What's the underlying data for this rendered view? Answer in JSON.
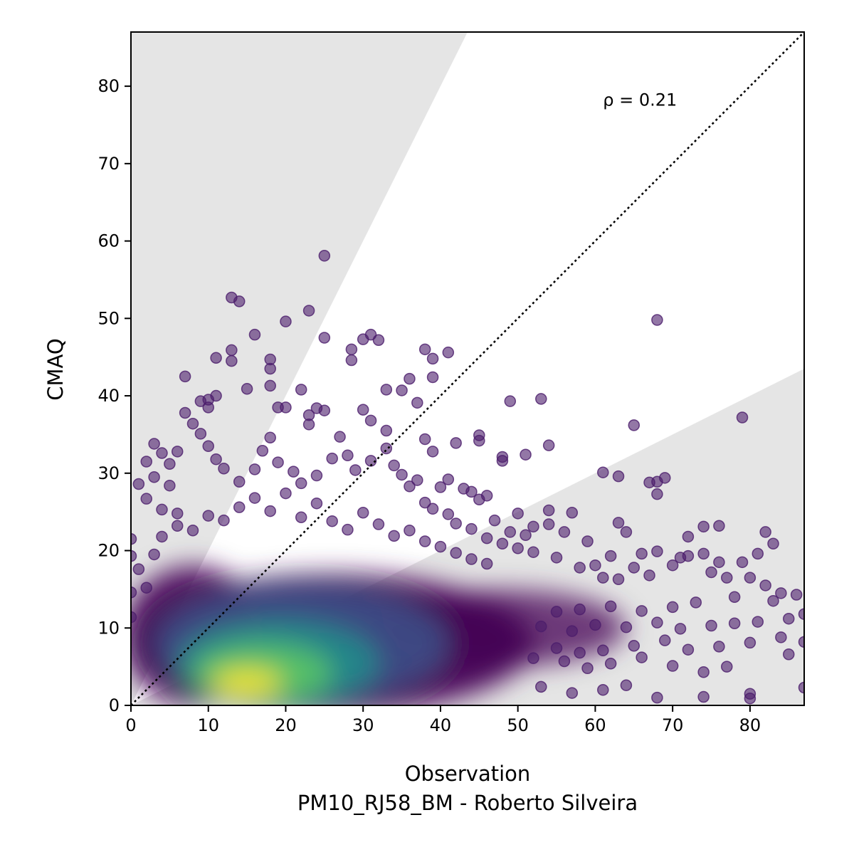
{
  "chart_data": {
    "type": "scatter",
    "title": "",
    "xlabel": "Observation",
    "xlabel_sub": "PM10_RJ58_BM - Roberto Silveira",
    "ylabel": "CMAQ",
    "xlim": [
      0,
      87
    ],
    "ylim": [
      0,
      87
    ],
    "x_ticks": [
      0,
      10,
      20,
      30,
      40,
      50,
      60,
      70,
      80
    ],
    "y_ticks": [
      0,
      10,
      20,
      30,
      40,
      50,
      60,
      70,
      80
    ],
    "grid": false,
    "legend": "none",
    "annotation": {
      "text": "ρ = 0.21",
      "x": 61,
      "y": 77.5
    },
    "reference_line": {
      "type": "1:1",
      "style": "dotted",
      "color": "#000000"
    },
    "shaded_region": {
      "description": "outside factor-of-2 envelope",
      "upper_slope": 2,
      "lower_slope": 0.5,
      "color": "#e5e5e5"
    },
    "point_color_scale": [
      "#440154",
      "#3b528b",
      "#21918c",
      "#5ec962",
      "#fde725"
    ],
    "outlier_color": "#4b1d6b",
    "density_peak": {
      "x": 15,
      "y": 3
    },
    "points": [
      [
        25,
        58.1
      ],
      [
        13,
        52.7
      ],
      [
        14,
        52.2
      ],
      [
        20,
        49.6
      ],
      [
        23,
        51
      ],
      [
        25,
        47.5
      ],
      [
        16,
        47.9
      ],
      [
        30,
        47.3
      ],
      [
        31,
        47.9
      ],
      [
        32,
        47.2
      ],
      [
        28.5,
        46
      ],
      [
        28.5,
        44.6
      ],
      [
        13,
        45.9
      ],
      [
        13,
        44.5
      ],
      [
        11,
        44.9
      ],
      [
        18,
        44.7
      ],
      [
        18,
        43.5
      ],
      [
        15,
        40.9
      ],
      [
        7,
        42.5
      ],
      [
        22,
        40.8
      ],
      [
        10,
        39.5
      ],
      [
        9,
        39.3
      ],
      [
        10,
        38.5
      ],
      [
        11,
        40
      ],
      [
        18,
        41.3
      ],
      [
        19,
        38.5
      ],
      [
        20,
        38.5
      ],
      [
        24,
        38.4
      ],
      [
        25,
        38.1
      ],
      [
        23,
        37.5
      ],
      [
        23,
        36.3
      ],
      [
        38,
        46
      ],
      [
        39,
        44.8
      ],
      [
        41,
        45.6
      ],
      [
        36,
        42.2
      ],
      [
        39,
        42.4
      ],
      [
        33,
        40.8
      ],
      [
        35,
        40.7
      ],
      [
        37,
        39.1
      ],
      [
        30,
        38.2
      ],
      [
        31,
        36.8
      ],
      [
        33,
        35.5
      ],
      [
        38,
        34.4
      ],
      [
        39,
        32.8
      ],
      [
        42,
        33.9
      ],
      [
        45,
        34.9
      ],
      [
        45,
        34.2
      ],
      [
        48,
        32.1
      ],
      [
        48,
        31.6
      ],
      [
        51,
        32.4
      ],
      [
        54,
        33.6
      ],
      [
        49,
        39.3
      ],
      [
        53,
        39.6
      ],
      [
        68,
        49.8
      ],
      [
        65,
        36.2
      ],
      [
        79,
        37.2
      ],
      [
        61,
        30.1
      ],
      [
        63,
        29.6
      ],
      [
        67,
        28.8
      ],
      [
        68,
        28.9
      ],
      [
        69,
        29.4
      ],
      [
        68,
        27.3
      ],
      [
        37,
        29.1
      ],
      [
        40,
        28.2
      ],
      [
        41,
        29.2
      ],
      [
        43,
        28
      ],
      [
        44,
        27.6
      ],
      [
        46,
        27.1
      ],
      [
        45,
        26.6
      ],
      [
        50,
        24.8
      ],
      [
        54,
        25.2
      ],
      [
        57,
        24.9
      ],
      [
        47,
        23.9
      ],
      [
        52,
        23.1
      ],
      [
        54,
        23.4
      ],
      [
        49,
        22.4
      ],
      [
        51,
        22
      ],
      [
        56,
        22.4
      ],
      [
        59,
        21.2
      ],
      [
        63,
        23.6
      ],
      [
        64,
        22.4
      ],
      [
        72,
        21.8
      ],
      [
        74,
        23.1
      ],
      [
        76,
        23.2
      ],
      [
        82,
        22.4
      ],
      [
        83,
        20.9
      ],
      [
        62,
        19.3
      ],
      [
        66,
        19.6
      ],
      [
        68,
        19.9
      ],
      [
        71,
        19.1
      ],
      [
        72,
        19.3
      ],
      [
        74,
        19.6
      ],
      [
        76,
        18.5
      ],
      [
        79,
        18.5
      ],
      [
        81,
        19.6
      ],
      [
        60,
        18.1
      ],
      [
        65,
        17.8
      ],
      [
        70,
        18.1
      ],
      [
        58,
        17.8
      ],
      [
        61,
        16.5
      ],
      [
        63,
        16.3
      ],
      [
        67,
        16.8
      ],
      [
        75,
        17.2
      ],
      [
        77,
        16.5
      ],
      [
        80,
        16.5
      ],
      [
        82,
        15.5
      ],
      [
        84,
        14.5
      ],
      [
        86,
        14.3
      ],
      [
        83,
        13.5
      ],
      [
        78,
        14
      ],
      [
        73,
        13.3
      ],
      [
        70,
        12.7
      ],
      [
        66,
        12.2
      ],
      [
        62,
        12.8
      ],
      [
        58,
        12.4
      ],
      [
        55,
        12.1
      ],
      [
        87,
        11.8
      ],
      [
        85,
        11.2
      ],
      [
        81,
        10.8
      ],
      [
        78,
        10.6
      ],
      [
        75,
        10.3
      ],
      [
        71,
        9.9
      ],
      [
        68,
        10.7
      ],
      [
        64,
        10.1
      ],
      [
        60,
        10.4
      ],
      [
        57,
        9.6
      ],
      [
        53,
        10.2
      ],
      [
        87,
        8.2
      ],
      [
        84,
        8.8
      ],
      [
        80,
        8.1
      ],
      [
        76,
        7.6
      ],
      [
        72,
        7.2
      ],
      [
        69,
        8.4
      ],
      [
        65,
        7.7
      ],
      [
        61,
        7.1
      ],
      [
        58,
        6.8
      ],
      [
        55,
        7.4
      ],
      [
        85,
        6.6
      ],
      [
        77,
        5
      ],
      [
        74,
        4.3
      ],
      [
        70,
        5.1
      ],
      [
        66,
        6.2
      ],
      [
        62,
        5.4
      ],
      [
        59,
        4.8
      ],
      [
        56,
        5.7
      ],
      [
        52,
        6.1
      ],
      [
        80,
        1.5
      ],
      [
        80,
        0.9
      ],
      [
        74,
        1.1
      ],
      [
        68,
        1
      ],
      [
        64,
        2.6
      ],
      [
        61,
        2
      ],
      [
        57,
        1.6
      ],
      [
        53,
        2.4
      ],
      [
        87,
        2.3
      ],
      [
        1,
        28.6
      ],
      [
        2,
        31.5
      ],
      [
        3,
        33.8
      ],
      [
        4,
        32.6
      ],
      [
        5,
        31.2
      ],
      [
        6,
        32.8
      ],
      [
        3,
        29.5
      ],
      [
        5,
        28.4
      ],
      [
        2,
        26.7
      ],
      [
        4,
        25.3
      ],
      [
        6,
        24.8
      ],
      [
        8,
        36.4
      ],
      [
        9,
        35.1
      ],
      [
        7,
        37.8
      ],
      [
        10,
        33.5
      ],
      [
        11,
        31.8
      ],
      [
        12,
        30.6
      ],
      [
        14,
        28.9
      ],
      [
        16,
        30.5
      ],
      [
        17,
        32.9
      ],
      [
        18,
        34.6
      ],
      [
        19,
        31.4
      ],
      [
        21,
        30.2
      ],
      [
        22,
        28.7
      ],
      [
        24,
        29.7
      ],
      [
        26,
        31.9
      ],
      [
        27,
        34.7
      ],
      [
        28,
        32.3
      ],
      [
        29,
        30.4
      ],
      [
        31,
        31.6
      ],
      [
        33,
        33.2
      ],
      [
        34,
        31
      ],
      [
        35,
        29.8
      ],
      [
        36,
        28.3
      ],
      [
        38,
        26.2
      ],
      [
        39,
        25.4
      ],
      [
        41,
        24.7
      ],
      [
        42,
        23.5
      ],
      [
        44,
        22.8
      ],
      [
        46,
        21.6
      ],
      [
        48,
        20.9
      ],
      [
        50,
        20.3
      ],
      [
        52,
        19.8
      ],
      [
        55,
        19.1
      ],
      [
        0,
        21.5
      ],
      [
        0,
        19.3
      ],
      [
        1,
        17.6
      ],
      [
        0,
        14.6
      ],
      [
        0,
        11.4
      ],
      [
        2,
        15.2
      ],
      [
        3,
        19.5
      ],
      [
        4,
        21.8
      ],
      [
        6,
        23.2
      ],
      [
        8,
        22.6
      ],
      [
        10,
        24.5
      ],
      [
        12,
        23.9
      ],
      [
        14,
        25.6
      ],
      [
        16,
        26.8
      ],
      [
        18,
        25.1
      ],
      [
        20,
        27.4
      ],
      [
        22,
        24.3
      ],
      [
        24,
        26.1
      ],
      [
        26,
        23.8
      ],
      [
        28,
        22.7
      ],
      [
        30,
        24.9
      ],
      [
        32,
        23.4
      ],
      [
        34,
        21.9
      ],
      [
        36,
        22.6
      ],
      [
        38,
        21.2
      ],
      [
        40,
        20.5
      ],
      [
        42,
        19.7
      ],
      [
        44,
        18.9
      ],
      [
        46,
        18.3
      ]
    ]
  }
}
